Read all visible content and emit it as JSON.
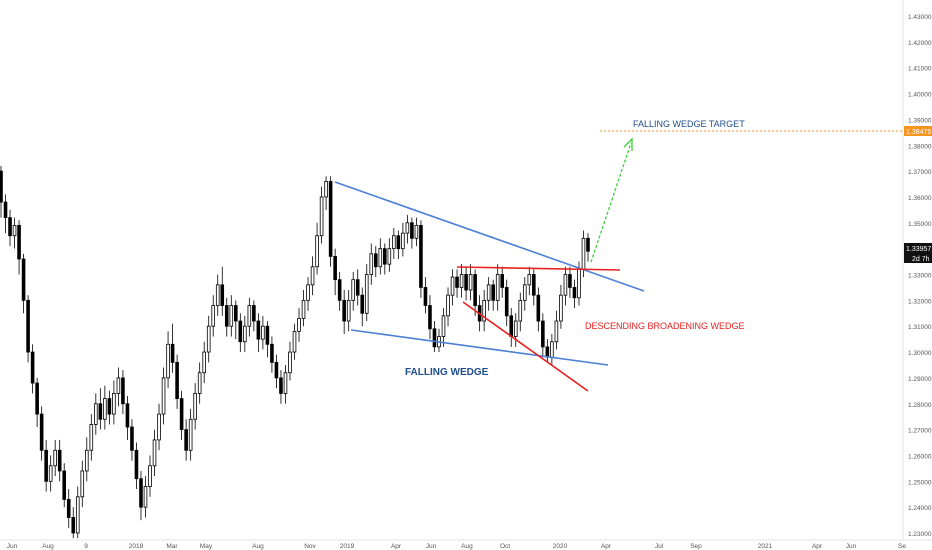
{
  "chart_data": {
    "type": "candlestick",
    "y_axis": {
      "min": 1.229,
      "max": 1.436,
      "ticks": [
        "1.43000",
        "1.42000",
        "1.41000",
        "1.40000",
        "1.39000",
        "1.38000",
        "1.37000",
        "1.36000",
        "1.35000",
        "1.34000",
        "1.33000",
        "1.32000",
        "1.31000",
        "1.30000",
        "1.29000",
        "1.28000",
        "1.27000",
        "1.26000",
        "1.25000",
        "1.24000",
        "1.23000"
      ]
    },
    "x_axis": {
      "ticks": [
        "Jun",
        "Aug",
        "9",
        "2018",
        "Mar",
        "May",
        "Aug",
        "Nov",
        "2019",
        "Apr",
        "Jun",
        "Aug",
        "Oct",
        "2020",
        "Apr",
        "Jul",
        "Sep",
        "2021",
        "Apr",
        "Jun",
        "Se"
      ]
    },
    "price_labels": {
      "target_value": "1.38475",
      "last_price": "1.33957",
      "countdown": "2d 7h"
    },
    "annotations": {
      "falling_wedge_target": "FALLING WEDGE TARGET",
      "falling_wedge": "FALLING WEDGE",
      "descending_broadening_wedge": "DESCENDING BROADENING WEDGE"
    },
    "candles": [
      [
        1.37,
        1.358,
        1.372,
        1.352
      ],
      [
        1.358,
        1.352,
        1.361,
        1.346
      ],
      [
        1.352,
        1.345,
        1.355,
        1.341
      ],
      [
        1.345,
        1.349,
        1.352,
        1.34
      ],
      [
        1.349,
        1.336,
        1.351,
        1.33
      ],
      [
        1.336,
        1.32,
        1.338,
        1.315
      ],
      [
        1.32,
        1.3,
        1.322,
        1.296
      ],
      [
        1.3,
        1.288,
        1.303,
        1.284
      ],
      [
        1.288,
        1.276,
        1.29,
        1.271
      ],
      [
        1.276,
        1.262,
        1.279,
        1.258
      ],
      [
        1.262,
        1.25,
        1.266,
        1.246
      ],
      [
        1.25,
        1.256,
        1.26,
        1.246
      ],
      [
        1.256,
        1.262,
        1.266,
        1.252
      ],
      [
        1.262,
        1.254,
        1.266,
        1.25
      ],
      [
        1.254,
        1.243,
        1.257,
        1.24
      ],
      [
        1.243,
        1.236,
        1.247,
        1.232
      ],
      [
        1.236,
        1.23,
        1.24,
        1.228
      ],
      [
        1.23,
        1.244,
        1.248,
        1.228
      ],
      [
        1.244,
        1.254,
        1.258,
        1.24
      ],
      [
        1.254,
        1.262,
        1.267,
        1.25
      ],
      [
        1.262,
        1.272,
        1.276,
        1.258
      ],
      [
        1.272,
        1.28,
        1.284,
        1.268
      ],
      [
        1.28,
        1.274,
        1.286,
        1.27
      ],
      [
        1.274,
        1.282,
        1.287,
        1.27
      ],
      [
        1.282,
        1.276,
        1.285,
        1.272
      ],
      [
        1.276,
        1.284,
        1.289,
        1.272
      ],
      [
        1.284,
        1.29,
        1.294,
        1.279
      ],
      [
        1.29,
        1.28,
        1.293,
        1.276
      ],
      [
        1.28,
        1.271,
        1.283,
        1.266
      ],
      [
        1.271,
        1.262,
        1.274,
        1.258
      ],
      [
        1.262,
        1.251,
        1.265,
        1.247
      ],
      [
        1.251,
        1.24,
        1.254,
        1.235
      ],
      [
        1.24,
        1.248,
        1.252,
        1.236
      ],
      [
        1.248,
        1.256,
        1.26,
        1.244
      ],
      [
        1.256,
        1.266,
        1.27,
        1.252
      ],
      [
        1.266,
        1.276,
        1.28,
        1.262
      ],
      [
        1.276,
        1.29,
        1.294,
        1.272
      ],
      [
        1.29,
        1.303,
        1.308,
        1.286
      ],
      [
        1.303,
        1.296,
        1.311,
        1.292
      ],
      [
        1.296,
        1.282,
        1.299,
        1.278
      ],
      [
        1.282,
        1.27,
        1.285,
        1.266
      ],
      [
        1.27,
        1.262,
        1.274,
        1.258
      ],
      [
        1.262,
        1.274,
        1.278,
        1.258
      ],
      [
        1.274,
        1.284,
        1.288,
        1.27
      ],
      [
        1.284,
        1.292,
        1.296,
        1.28
      ],
      [
        1.292,
        1.3,
        1.304,
        1.288
      ],
      [
        1.3,
        1.31,
        1.314,
        1.296
      ],
      [
        1.31,
        1.318,
        1.322,
        1.306
      ],
      [
        1.318,
        1.326,
        1.33,
        1.314
      ],
      [
        1.326,
        1.318,
        1.333,
        1.314
      ],
      [
        1.318,
        1.31,
        1.321,
        1.306
      ],
      [
        1.31,
        1.318,
        1.322,
        1.306
      ],
      [
        1.318,
        1.312,
        1.32,
        1.305
      ],
      [
        1.312,
        1.304,
        1.315,
        1.3
      ],
      [
        1.304,
        1.31,
        1.314,
        1.3
      ],
      [
        1.31,
        1.318,
        1.321,
        1.306
      ],
      [
        1.318,
        1.312,
        1.32,
        1.308
      ],
      [
        1.312,
        1.305,
        1.315,
        1.3
      ],
      [
        1.305,
        1.31,
        1.314,
        1.301
      ],
      [
        1.31,
        1.303,
        1.312,
        1.298
      ],
      [
        1.303,
        1.296,
        1.306,
        1.292
      ],
      [
        1.296,
        1.29,
        1.299,
        1.286
      ],
      [
        1.29,
        1.284,
        1.293,
        1.28
      ],
      [
        1.284,
        1.292,
        1.295,
        1.28
      ],
      [
        1.292,
        1.3,
        1.304,
        1.289
      ],
      [
        1.3,
        1.308,
        1.311,
        1.297
      ],
      [
        1.308,
        1.313,
        1.317,
        1.304
      ],
      [
        1.313,
        1.32,
        1.324,
        1.31
      ],
      [
        1.32,
        1.326,
        1.329,
        1.316
      ],
      [
        1.326,
        1.333,
        1.337,
        1.322
      ],
      [
        1.333,
        1.345,
        1.35,
        1.33
      ],
      [
        1.345,
        1.36,
        1.364,
        1.342
      ],
      [
        1.36,
        1.366,
        1.368,
        1.355
      ],
      [
        1.366,
        1.337,
        1.368,
        1.333
      ],
      [
        1.337,
        1.328,
        1.34,
        1.322
      ],
      [
        1.328,
        1.32,
        1.331,
        1.316
      ],
      [
        1.32,
        1.312,
        1.324,
        1.307
      ],
      [
        1.312,
        1.32,
        1.324,
        1.308
      ],
      [
        1.32,
        1.328,
        1.331,
        1.316
      ],
      [
        1.328,
        1.322,
        1.332,
        1.318
      ],
      [
        1.322,
        1.315,
        1.325,
        1.31
      ],
      [
        1.315,
        1.33,
        1.334,
        1.312
      ],
      [
        1.33,
        1.338,
        1.342,
        1.326
      ],
      [
        1.338,
        1.333,
        1.341,
        1.329
      ],
      [
        1.333,
        1.34,
        1.344,
        1.33
      ],
      [
        1.34,
        1.334,
        1.342,
        1.33
      ],
      [
        1.334,
        1.34,
        1.344,
        1.331
      ],
      [
        1.34,
        1.345,
        1.348,
        1.336
      ],
      [
        1.345,
        1.34,
        1.347,
        1.336
      ],
      [
        1.34,
        1.346,
        1.35,
        1.337
      ],
      [
        1.346,
        1.35,
        1.353,
        1.342
      ],
      [
        1.35,
        1.344,
        1.352,
        1.34
      ],
      [
        1.344,
        1.349,
        1.352,
        1.341
      ],
      [
        1.349,
        1.325,
        1.351,
        1.321
      ],
      [
        1.325,
        1.318,
        1.329,
        1.315
      ],
      [
        1.318,
        1.309,
        1.322,
        1.305
      ],
      [
        1.309,
        1.302,
        1.312,
        1.3
      ],
      [
        1.302,
        1.306,
        1.309,
        1.3
      ],
      [
        1.306,
        1.314,
        1.317,
        1.302
      ],
      [
        1.314,
        1.322,
        1.325,
        1.31
      ],
      [
        1.322,
        1.329,
        1.332,
        1.318
      ],
      [
        1.329,
        1.325,
        1.332,
        1.321
      ],
      [
        1.325,
        1.33,
        1.334,
        1.321
      ],
      [
        1.33,
        1.324,
        1.333,
        1.32
      ],
      [
        1.324,
        1.33,
        1.334,
        1.32
      ],
      [
        1.33,
        1.318,
        1.332,
        1.314
      ],
      [
        1.318,
        1.312,
        1.322,
        1.308
      ],
      [
        1.312,
        1.32,
        1.324,
        1.308
      ],
      [
        1.32,
        1.326,
        1.329,
        1.316
      ],
      [
        1.326,
        1.32,
        1.328,
        1.316
      ],
      [
        1.32,
        1.33,
        1.334,
        1.316
      ],
      [
        1.33,
        1.325,
        1.333,
        1.321
      ],
      [
        1.325,
        1.314,
        1.328,
        1.31
      ],
      [
        1.314,
        1.306,
        1.317,
        1.302
      ],
      [
        1.306,
        1.312,
        1.315,
        1.302
      ],
      [
        1.312,
        1.32,
        1.323,
        1.308
      ],
      [
        1.32,
        1.326,
        1.329,
        1.316
      ],
      [
        1.326,
        1.33,
        1.333,
        1.322
      ],
      [
        1.33,
        1.322,
        1.332,
        1.318
      ],
      [
        1.322,
        1.312,
        1.325,
        1.308
      ],
      [
        1.312,
        1.302,
        1.315,
        1.298
      ],
      [
        1.302,
        1.298,
        1.305,
        1.296
      ],
      [
        1.298,
        1.304,
        1.307,
        1.295
      ],
      [
        1.304,
        1.312,
        1.316,
        1.301
      ],
      [
        1.312,
        1.322,
        1.326,
        1.309
      ],
      [
        1.322,
        1.33,
        1.333,
        1.318
      ],
      [
        1.33,
        1.325,
        1.333,
        1.321
      ],
      [
        1.325,
        1.321,
        1.328,
        1.317
      ],
      [
        1.321,
        1.332,
        1.335,
        1.318
      ],
      [
        1.332,
        1.344,
        1.347,
        1.329
      ],
      [
        1.344,
        1.339,
        1.346,
        1.335
      ]
    ]
  }
}
